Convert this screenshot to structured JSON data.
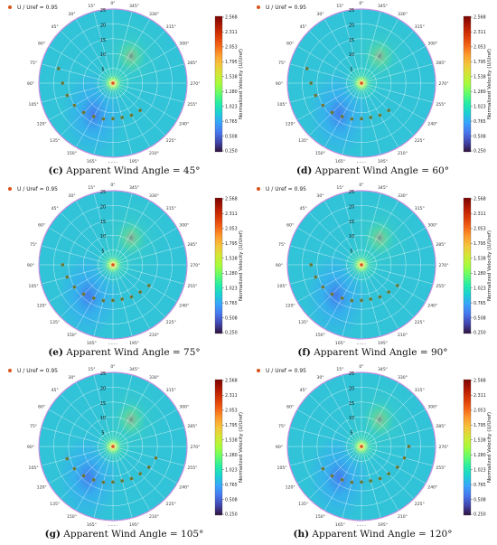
{
  "colors": {
    "colormap": [
      "#30123b",
      "#4145ab",
      "#4675ed",
      "#39a2fc",
      "#1bcfd4",
      "#24eca6",
      "#61fc6c",
      "#a4fc3b",
      "#d1e834",
      "#f3c63a",
      "#fe9b2d",
      "#f36315",
      "#d93806",
      "#b11901",
      "#7a0402"
    ],
    "marker": "#d9541a",
    "marker_inner": "#3a8a3a",
    "field_base": "#31c3d8",
    "grid": "#ffffff",
    "border": "#c890e0"
  },
  "chart_data": [
    {
      "type": "polar",
      "panel": "c",
      "caption_label": "(c)",
      "caption_text": "Apparent Wind Angle = 45°",
      "legend": "U / Uref = 0.95",
      "colorbar_label": "Normalized Velocity (U/Uref)",
      "colorbar_ticks": [
        "2.568",
        "2.311",
        "2.053",
        "1.795",
        "1.538",
        "1.280",
        "1.023",
        "0.765",
        "0.508",
        "0.250"
      ],
      "rings": [
        "5",
        "10",
        "15",
        "20",
        "25"
      ],
      "angle_ticks": [
        "0°",
        "15°",
        "30°",
        "45°",
        "60°",
        "75°",
        "90°",
        "105°",
        "120°",
        "135°",
        "150°",
        "165°",
        "180°",
        "195°",
        "210°",
        "225°",
        "240°",
        "255°",
        "270°",
        "285°",
        "300°",
        "315°",
        "330°",
        "345°"
      ],
      "wind_angle": 45,
      "markers": [
        [
          75,
          19
        ],
        [
          90,
          17
        ],
        [
          105,
          16
        ],
        [
          120,
          15
        ],
        [
          135,
          14
        ],
        [
          150,
          13
        ],
        [
          165,
          12.5
        ],
        [
          180,
          12
        ],
        [
          195,
          12
        ],
        [
          210,
          12.5
        ],
        [
          225,
          13
        ]
      ]
    },
    {
      "type": "polar",
      "panel": "d",
      "caption_label": "(d)",
      "caption_text": "Apparent Wind Angle = 60°",
      "legend": "U / Uref = 0.95",
      "colorbar_label": "Normalized Velocity (U/Uref)",
      "colorbar_ticks": [
        "2.568",
        "2.311",
        "2.053",
        "1.795",
        "1.538",
        "1.280",
        "1.023",
        "0.765",
        "0.508",
        "0.250"
      ],
      "rings": [
        "5",
        "10",
        "15",
        "20",
        "25"
      ],
      "angle_ticks": [
        "0°",
        "15°",
        "30°",
        "45°",
        "60°",
        "75°",
        "90°",
        "105°",
        "120°",
        "135°",
        "150°",
        "165°",
        "180°",
        "195°",
        "210°",
        "225°",
        "240°",
        "255°",
        "270°",
        "285°",
        "300°",
        "315°",
        "330°",
        "345°"
      ],
      "wind_angle": 60,
      "markers": [
        [
          75,
          19
        ],
        [
          90,
          17
        ],
        [
          105,
          16
        ],
        [
          120,
          15
        ],
        [
          135,
          14
        ],
        [
          150,
          13
        ],
        [
          165,
          12.5
        ],
        [
          180,
          12
        ],
        [
          195,
          12
        ],
        [
          210,
          12.5
        ],
        [
          225,
          13
        ]
      ]
    },
    {
      "type": "polar",
      "panel": "e",
      "caption_label": "(e)",
      "caption_text": "Apparent Wind Angle = 75°",
      "legend": "U / Uref = 0.95",
      "colorbar_label": "Normalized Velocity (U/Uref)",
      "colorbar_ticks": [
        "2.568",
        "2.311",
        "2.053",
        "1.795",
        "1.538",
        "1.280",
        "1.023",
        "0.765",
        "0.508",
        "0.250"
      ],
      "rings": [
        "5",
        "10",
        "15",
        "20",
        "25"
      ],
      "angle_ticks": [
        "0°",
        "15°",
        "30°",
        "45°",
        "60°",
        "75°",
        "90°",
        "105°",
        "120°",
        "135°",
        "150°",
        "165°",
        "180°",
        "195°",
        "210°",
        "225°",
        "240°",
        "255°",
        "270°",
        "285°",
        "300°",
        "315°",
        "330°",
        "345°"
      ],
      "wind_angle": 75,
      "markers": [
        [
          90,
          17
        ],
        [
          105,
          16
        ],
        [
          120,
          15
        ],
        [
          135,
          14
        ],
        [
          150,
          13
        ],
        [
          165,
          12.5
        ],
        [
          180,
          12
        ],
        [
          195,
          12
        ],
        [
          210,
          12.5
        ],
        [
          225,
          13
        ],
        [
          240,
          14
        ]
      ]
    },
    {
      "type": "polar",
      "panel": "f",
      "caption_label": "(f)",
      "caption_text": "Apparent Wind Angle = 90°",
      "legend": "U / Uref = 0.95",
      "colorbar_label": "Normalized Velocity (U/Uref)",
      "colorbar_ticks": [
        "2.568",
        "2.311",
        "2.053",
        "1.795",
        "1.538",
        "1.280",
        "1.023",
        "0.765",
        "0.508",
        "0.250"
      ],
      "rings": [
        "5",
        "10",
        "15",
        "20",
        "25"
      ],
      "angle_ticks": [
        "0°",
        "15°",
        "30°",
        "45°",
        "60°",
        "75°",
        "90°",
        "105°",
        "120°",
        "135°",
        "150°",
        "165°",
        "180°",
        "195°",
        "210°",
        "225°",
        "240°",
        "255°",
        "270°",
        "285°",
        "300°",
        "315°",
        "330°",
        "345°"
      ],
      "wind_angle": 90,
      "markers": [
        [
          90,
          17
        ],
        [
          105,
          16
        ],
        [
          120,
          15
        ],
        [
          135,
          14
        ],
        [
          150,
          13
        ],
        [
          165,
          12.5
        ],
        [
          180,
          12
        ],
        [
          195,
          12
        ],
        [
          210,
          12.5
        ],
        [
          225,
          13
        ],
        [
          240,
          14
        ]
      ]
    },
    {
      "type": "polar",
      "panel": "g",
      "caption_label": "(g)",
      "caption_text": "Apparent Wind Angle = 105°",
      "legend": "U / Uref = 0.95",
      "colorbar_label": "Normalized Velocity (U/Uref)",
      "colorbar_ticks": [
        "2.568",
        "2.311",
        "2.053",
        "1.795",
        "1.538",
        "1.280",
        "1.023",
        "0.765",
        "0.508",
        "0.250"
      ],
      "rings": [
        "5",
        "10",
        "15",
        "20",
        "25"
      ],
      "angle_ticks": [
        "0°",
        "15°",
        "30°",
        "45°",
        "60°",
        "75°",
        "90°",
        "105°",
        "120°",
        "135°",
        "150°",
        "165°",
        "180°",
        "195°",
        "210°",
        "225°",
        "240°",
        "255°",
        "270°",
        "285°",
        "300°",
        "315°",
        "330°",
        "345°"
      ],
      "wind_angle": 105,
      "markers": [
        [
          105,
          16
        ],
        [
          120,
          15
        ],
        [
          135,
          14
        ],
        [
          150,
          13
        ],
        [
          165,
          12.5
        ],
        [
          180,
          12
        ],
        [
          195,
          12
        ],
        [
          210,
          12.5
        ],
        [
          225,
          13
        ],
        [
          240,
          14
        ],
        [
          255,
          15
        ]
      ]
    },
    {
      "type": "polar",
      "panel": "h",
      "caption_label": "(h)",
      "caption_text": "Apparent Wind Angle = 120°",
      "legend": "U / Uref = 0.95",
      "colorbar_label": "Normalized Velocity (U/Uref)",
      "colorbar_ticks": [
        "2.568",
        "2.311",
        "2.053",
        "1.795",
        "1.538",
        "1.280",
        "1.023",
        "0.765",
        "0.508",
        "0.250"
      ],
      "rings": [
        "5",
        "10",
        "15",
        "20",
        "25"
      ],
      "angle_ticks": [
        "0°",
        "15°",
        "30°",
        "45°",
        "60°",
        "75°",
        "90°",
        "105°",
        "120°",
        "135°",
        "150°",
        "165°",
        "180°",
        "195°",
        "210°",
        "225°",
        "240°",
        "255°",
        "270°",
        "285°",
        "300°",
        "315°",
        "330°",
        "345°"
      ],
      "wind_angle": 120,
      "markers": [
        [
          120,
          15
        ],
        [
          135,
          14
        ],
        [
          150,
          13
        ],
        [
          165,
          12.5
        ],
        [
          180,
          12
        ],
        [
          195,
          12
        ],
        [
          210,
          12.5
        ],
        [
          225,
          13
        ],
        [
          240,
          14
        ],
        [
          255,
          15
        ],
        [
          270,
          16
        ]
      ]
    }
  ]
}
